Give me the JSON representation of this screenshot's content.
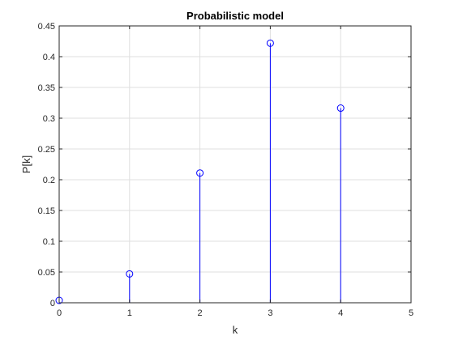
{
  "chart_data": {
    "type": "stem",
    "title": "Probabilistic model",
    "xlabel": "k",
    "ylabel": "P[k]",
    "xlim": [
      0,
      5
    ],
    "ylim": [
      0,
      0.45
    ],
    "x_ticks": [
      0,
      1,
      2,
      3,
      4,
      5
    ],
    "y_ticks": [
      0,
      0.05,
      0.1,
      0.15,
      0.2,
      0.25,
      0.3,
      0.35,
      0.4,
      0.45
    ],
    "x_tick_labels": [
      "0",
      "1",
      "2",
      "3",
      "4",
      "5"
    ],
    "y_tick_labels": [
      "0",
      "0.05",
      "0.1",
      "0.15",
      "0.2",
      "0.25",
      "0.3",
      "0.35",
      "0.4",
      "0.45"
    ],
    "grid": true,
    "series": [
      {
        "x": [
          0,
          1,
          2,
          3,
          4
        ],
        "y": [
          0.0039,
          0.0469,
          0.2109,
          0.4219,
          0.3164
        ],
        "color": "#0000ff",
        "marker": "circle"
      }
    ]
  }
}
